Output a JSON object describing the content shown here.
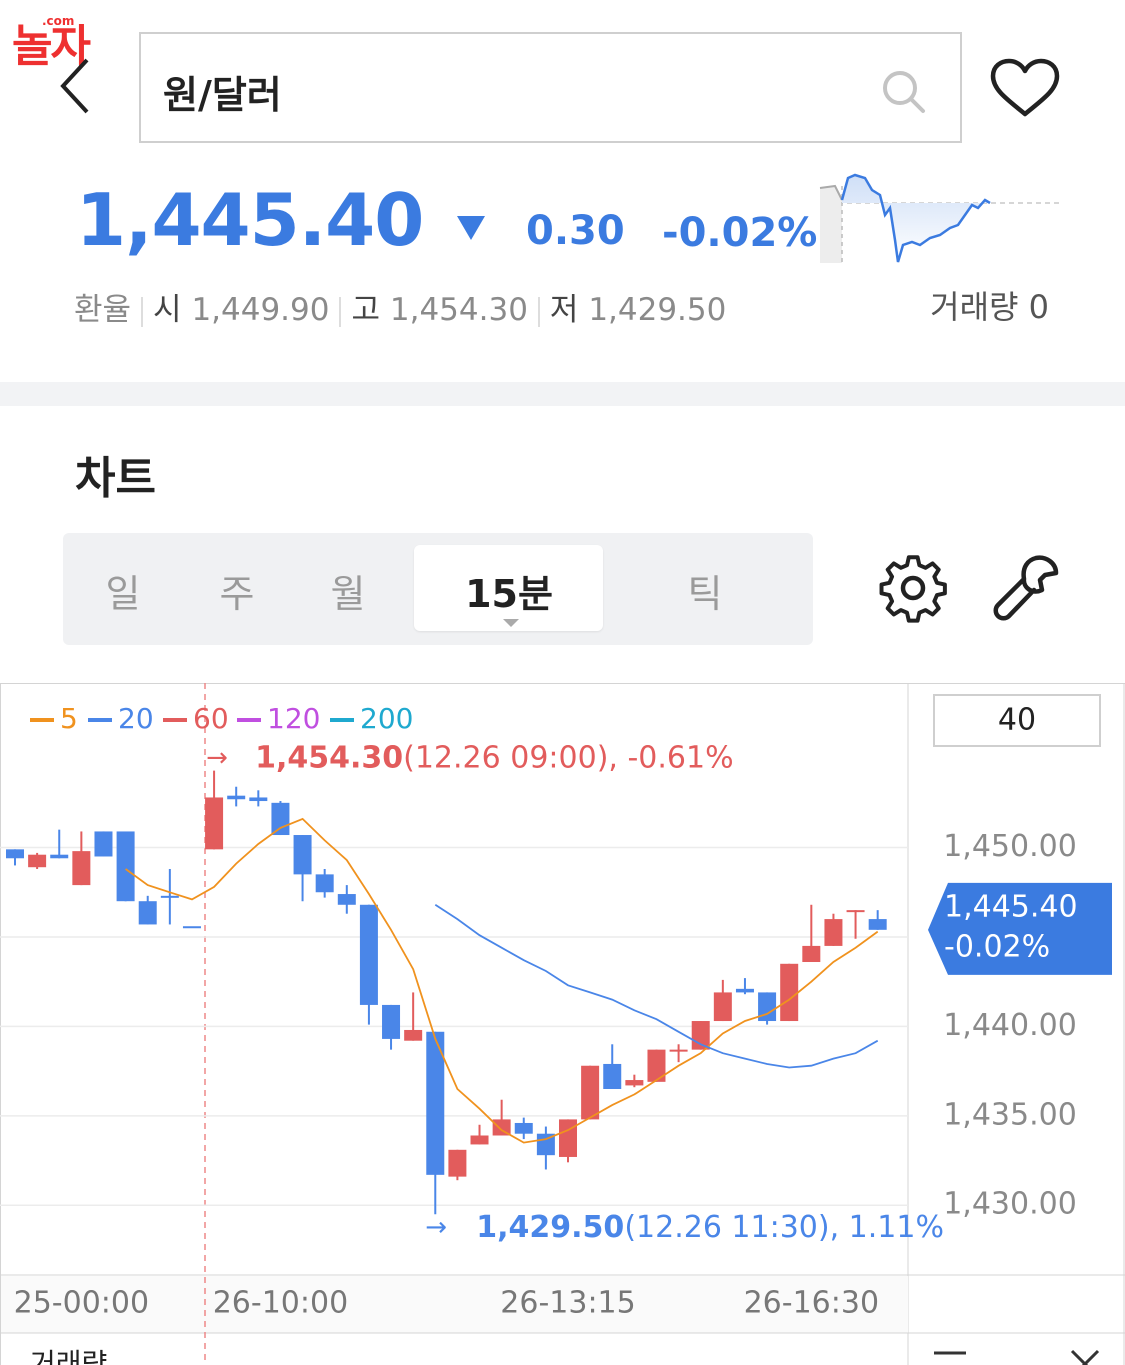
{
  "watermark": {
    "main": "놀자",
    "sub": ".com"
  },
  "search": {
    "query": "원/달러"
  },
  "quote": {
    "price": "1,445.40",
    "change": "0.30",
    "change_pct": "-0.02%",
    "label": "환율",
    "open_label": "시",
    "open": "1,449.90",
    "high_label": "고",
    "high": "1,454.30",
    "low_label": "저",
    "low": "1,429.50",
    "volume": "거래량 0"
  },
  "section_title": "차트",
  "tabs": [
    "일",
    "주",
    "월",
    "15분",
    "틱"
  ],
  "selected_tab": 3,
  "chart_data": {
    "type": "candlestick",
    "visible_count": 40,
    "up_color": "#e25c5c",
    "down_color": "#4a86e8",
    "categories": [
      null,
      null,
      null,
      "25-00:00",
      null,
      null,
      null,
      null,
      null,
      null,
      null,
      null,
      "26-10:00",
      null,
      null,
      null,
      null,
      null,
      null,
      null,
      null,
      null,
      null,
      null,
      null,
      "26-13:15",
      null,
      null,
      null,
      null,
      null,
      null,
      null,
      null,
      null,
      null,
      "26-16:30",
      null,
      null,
      null
    ],
    "candles": [
      {
        "open": 1449.9,
        "high": 1449.9,
        "low": 1449.0,
        "close": 1449.4
      },
      {
        "open": 1448.9,
        "high": 1449.7,
        "low": 1448.8,
        "close": 1449.6
      },
      {
        "open": 1449.6,
        "high": 1451.0,
        "low": 1449.4,
        "close": 1449.4
      },
      {
        "open": 1447.9,
        "high": 1450.9,
        "low": 1447.9,
        "close": 1449.8
      },
      {
        "open": 1450.9,
        "high": 1450.9,
        "low": 1449.5,
        "close": 1449.5
      },
      {
        "open": 1450.9,
        "high": 1450.9,
        "low": 1447.0,
        "close": 1447.0
      },
      {
        "open": 1447.0,
        "high": 1447.3,
        "low": 1445.7,
        "close": 1445.7
      },
      {
        "open": 1447.3,
        "high": 1448.8,
        "low": 1445.7,
        "close": 1447.2
      },
      {
        "open": 1445.6,
        "high": 1445.6,
        "low": 1445.6,
        "close": 1445.6
      },
      {
        "open": 1449.9,
        "high": 1454.3,
        "low": 1449.9,
        "close": 1452.8
      },
      {
        "open": 1452.9,
        "high": 1453.4,
        "low": 1452.3,
        "close": 1452.7
      },
      {
        "open": 1452.8,
        "high": 1453.2,
        "low": 1452.3,
        "close": 1452.6
      },
      {
        "open": 1452.5,
        "high": 1452.6,
        "low": 1450.7,
        "close": 1450.7
      },
      {
        "open": 1450.7,
        "high": 1450.7,
        "low": 1447.0,
        "close": 1448.5
      },
      {
        "open": 1448.5,
        "high": 1448.8,
        "low": 1447.2,
        "close": 1447.5
      },
      {
        "open": 1447.4,
        "high": 1447.9,
        "low": 1446.3,
        "close": 1446.8
      },
      {
        "open": 1446.8,
        "high": 1446.8,
        "low": 1440.1,
        "close": 1441.2
      },
      {
        "open": 1441.2,
        "high": 1441.2,
        "low": 1438.7,
        "close": 1439.3
      },
      {
        "open": 1439.2,
        "high": 1441.9,
        "low": 1439.2,
        "close": 1439.8
      },
      {
        "open": 1439.7,
        "high": 1439.7,
        "low": 1429.5,
        "close": 1431.7
      },
      {
        "open": 1431.6,
        "high": 1433.1,
        "low": 1431.4,
        "close": 1433.1
      },
      {
        "open": 1433.4,
        "high": 1434.5,
        "low": 1433.4,
        "close": 1433.9
      },
      {
        "open": 1433.9,
        "high": 1435.9,
        "low": 1433.9,
        "close": 1434.8
      },
      {
        "open": 1434.6,
        "high": 1434.9,
        "low": 1433.7,
        "close": 1434.0
      },
      {
        "open": 1434.0,
        "high": 1434.4,
        "low": 1432.0,
        "close": 1432.8
      },
      {
        "open": 1432.7,
        "high": 1434.8,
        "low": 1432.4,
        "close": 1434.8
      },
      {
        "open": 1434.8,
        "high": 1437.8,
        "low": 1434.8,
        "close": 1437.8
      },
      {
        "open": 1437.9,
        "high": 1439.0,
        "low": 1436.5,
        "close": 1436.5
      },
      {
        "open": 1436.7,
        "high": 1437.3,
        "low": 1436.6,
        "close": 1437.0
      },
      {
        "open": 1436.9,
        "high": 1438.7,
        "low": 1436.9,
        "close": 1438.7
      },
      {
        "open": 1438.6,
        "high": 1439.0,
        "low": 1438.0,
        "close": 1438.7
      },
      {
        "open": 1438.7,
        "high": 1440.3,
        "low": 1438.7,
        "close": 1440.3
      },
      {
        "open": 1440.3,
        "high": 1442.6,
        "low": 1440.3,
        "close": 1441.9
      },
      {
        "open": 1442.1,
        "high": 1442.7,
        "low": 1441.8,
        "close": 1441.9
      },
      {
        "open": 1441.9,
        "high": 1441.9,
        "low": 1440.1,
        "close": 1440.3
      },
      {
        "open": 1440.3,
        "high": 1443.5,
        "low": 1440.3,
        "close": 1443.5
      },
      {
        "open": 1443.6,
        "high": 1446.8,
        "low": 1443.6,
        "close": 1444.5
      },
      {
        "open": 1444.5,
        "high": 1446.3,
        "low": 1444.5,
        "close": 1446.0
      },
      {
        "open": 1446.4,
        "high": 1446.5,
        "low": 1444.9,
        "close": 1446.5
      },
      {
        "open": 1446.0,
        "high": 1446.5,
        "low": 1445.4,
        "close": 1445.4
      }
    ],
    "series": [
      {
        "name": "5",
        "color": "#f0921e",
        "values": [
          null,
          null,
          null,
          null,
          null,
          1448.8,
          1447.9,
          1447.5,
          1447.1,
          1447.8,
          1449.1,
          1450.2,
          1451.1,
          1451.6,
          1450.4,
          1449.3,
          1447.4,
          1445.4,
          1443.2,
          1439.3,
          1436.5,
          1435.4,
          1434.2,
          1433.5,
          1433.7,
          1434.2,
          1434.9,
          1435.6,
          1436.2,
          1437.0,
          1437.8,
          1438.5,
          1439.6,
          1440.3,
          1440.7,
          1441.5,
          1442.5,
          1443.6,
          1444.4,
          1445.3
        ]
      },
      {
        "name": "20",
        "color": "#4a86e8",
        "values": [
          null,
          null,
          null,
          null,
          null,
          null,
          null,
          null,
          null,
          null,
          null,
          null,
          null,
          null,
          null,
          null,
          null,
          null,
          null,
          1446.8,
          1446.0,
          1445.1,
          1444.4,
          1443.7,
          1443.1,
          1442.3,
          1441.9,
          1441.5,
          1440.9,
          1440.4,
          1439.7,
          1439.0,
          1438.5,
          1438.2,
          1437.9,
          1437.7,
          1437.8,
          1438.2,
          1438.5,
          1439.2
        ]
      },
      {
        "name": "60",
        "color": "#e25c5c"
      },
      {
        "name": "120",
        "color": "#c04fe0"
      },
      {
        "name": "200",
        "color": "#1fa9cf"
      }
    ],
    "ylim": [
      1426.1,
      1459.2
    ],
    "yticks": [
      {
        "value": 1450,
        "label": "1,450.00"
      },
      {
        "value": 1445,
        "label": "1,445.00"
      },
      {
        "value": 1440,
        "label": "1,440.00"
      },
      {
        "value": 1435,
        "label": "1,435.00"
      },
      {
        "value": 1430,
        "label": "1,430.00"
      }
    ],
    "grid": true,
    "max_label": {
      "price": "1,454.30",
      "detail": "(12.26 09:00), -0.61%"
    },
    "min_label": {
      "price": "1,429.50",
      "detail": "(12.26 11:30), 1.11%"
    }
  },
  "volume_panel": {
    "title": "거래량"
  }
}
